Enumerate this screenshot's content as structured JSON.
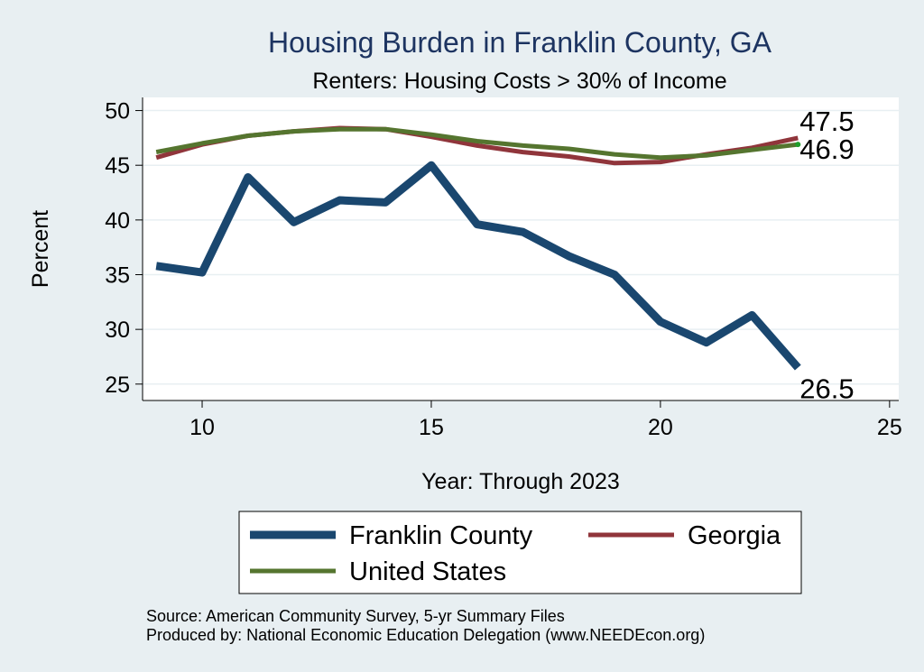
{
  "chart_data": {
    "type": "line",
    "title": "Housing Burden in Franklin County, GA",
    "subtitle": "Renters: Housing Costs > 30% of Income",
    "xlabel": "Year: Through 2023",
    "ylabel": "Percent",
    "xlim": [
      8.7,
      25.2
    ],
    "ylim": [
      23.5,
      51.2
    ],
    "x_ticks": [
      10,
      15,
      20,
      25
    ],
    "y_ticks": [
      25,
      30,
      35,
      40,
      45,
      50
    ],
    "grid": true,
    "x": [
      9,
      10,
      11,
      12,
      13,
      14,
      15,
      16,
      17,
      18,
      19,
      20,
      21,
      22,
      23
    ],
    "series": [
      {
        "name": "Franklin County",
        "color": "#1a476f",
        "values": [
          35.8,
          35.2,
          43.9,
          39.8,
          41.8,
          41.6,
          45.0,
          39.6,
          38.9,
          36.7,
          35.0,
          30.7,
          28.8,
          31.3,
          26.5
        ],
        "end_label": "26.5"
      },
      {
        "name": "Georgia",
        "color": "#90353b",
        "values": [
          45.7,
          46.9,
          47.7,
          48.1,
          48.4,
          48.3,
          47.6,
          46.8,
          46.2,
          45.8,
          45.2,
          45.3,
          46.0,
          46.6,
          47.5
        ],
        "end_label": "47.5"
      },
      {
        "name": "United States",
        "color": "#55752f",
        "values": [
          46.2,
          47.0,
          47.7,
          48.1,
          48.3,
          48.3,
          47.8,
          47.2,
          46.8,
          46.5,
          46.0,
          45.7,
          45.9,
          46.4,
          46.9
        ],
        "end_label": "46.9"
      }
    ],
    "legend_position": "bottom",
    "source_lines": [
      "Source: American Community Survey, 5-yr Summary Files",
      "Produced by: National Economic Education Delegation (www.NEEDEcon.org)"
    ]
  }
}
